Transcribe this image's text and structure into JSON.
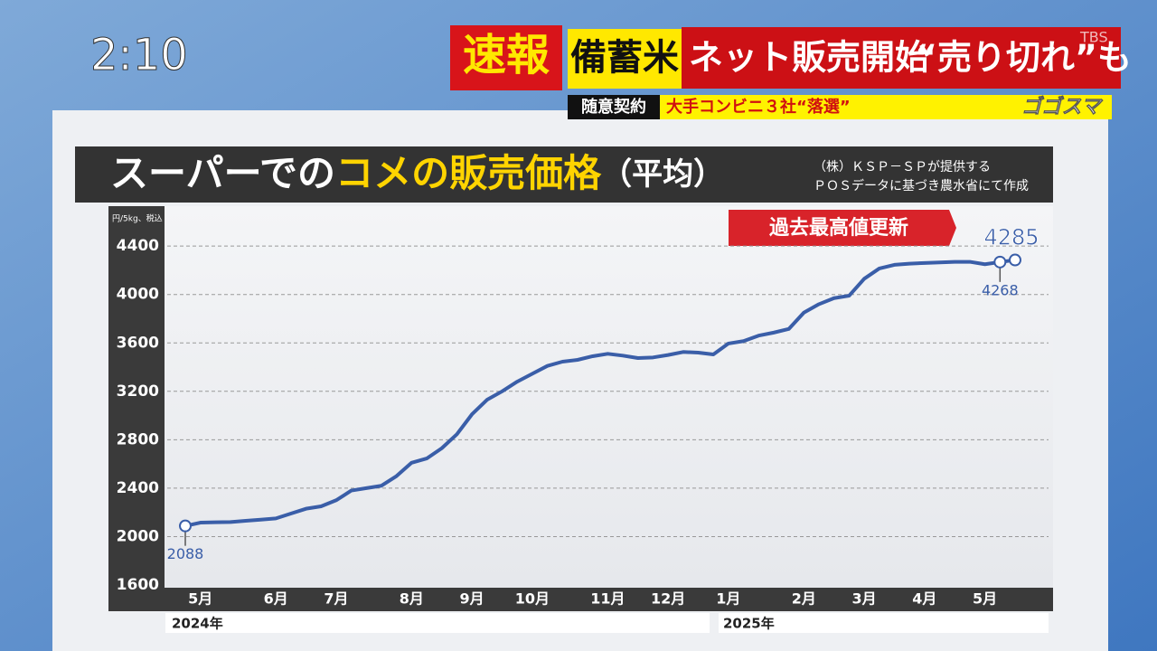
{
  "clock": "2:10",
  "banner": {
    "tag": "速報",
    "keyword": "備蓄米",
    "headline": "ネット販売開始",
    "quote": "“売り切れ”も",
    "sub_tag": "随意契約",
    "sub_text": "大手コンビニ３社“落選”",
    "show": "ゴゴスマ",
    "network": "TBS"
  },
  "chart_data": {
    "type": "line",
    "title": [
      "スーパーでの",
      "コメの販売価格",
      "（平均）"
    ],
    "source": [
      "（株）ＫＳＰ－ＳＰが提供する",
      "ＰＯＳデータに基づき農水省にて作成"
    ],
    "y_label": "円/5kg、税込",
    "annotation": "過去最高値更新",
    "categories": [
      null,
      "5月",
      null,
      null,
      null,
      null,
      "6月",
      null,
      null,
      null,
      "7月",
      null,
      null,
      null,
      null,
      "8月",
      null,
      null,
      null,
      "9月",
      null,
      null,
      null,
      "10月",
      null,
      null,
      null,
      null,
      "11月",
      null,
      null,
      null,
      "12月",
      null,
      null,
      null,
      "1月",
      null,
      null,
      null,
      null,
      "2月",
      null,
      null,
      null,
      "3月",
      null,
      null,
      null,
      "4月",
      null,
      null,
      null,
      "5月",
      null,
      null
    ],
    "years": [
      "2024年",
      "2025年"
    ],
    "series": [
      {
        "name": "販売価格",
        "color": "#3a5ea8",
        "values": [
          2088,
          2115,
          2118,
          2120,
          2130,
          2140,
          2150,
          2190,
          2230,
          2250,
          2300,
          2380,
          2400,
          2420,
          2500,
          2610,
          2645,
          2730,
          2845,
          3010,
          3130,
          3200,
          3280,
          3345,
          3410,
          3445,
          3460,
          3490,
          3510,
          3495,
          3475,
          3480,
          3500,
          3525,
          3520,
          3505,
          3595,
          3615,
          3660,
          3685,
          3715,
          3850,
          3920,
          3970,
          3990,
          4130,
          4215,
          4245,
          4255,
          4260,
          4265,
          4270,
          4270,
          4250,
          4268,
          4285
        ]
      }
    ],
    "ylim": [
      1600,
      4700
    ],
    "yticks": [
      1600,
      2000,
      2400,
      2800,
      3200,
      3600,
      4000,
      4400
    ],
    "grid": true
  }
}
